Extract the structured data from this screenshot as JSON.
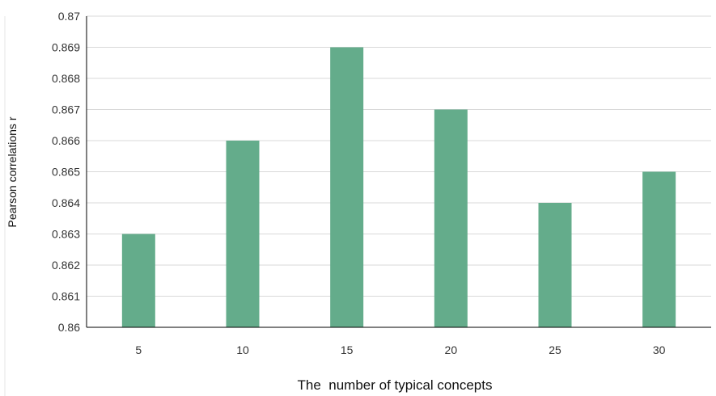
{
  "chart_data": {
    "type": "bar",
    "categories": [
      "5",
      "10",
      "15",
      "20",
      "25",
      "30"
    ],
    "values": [
      0.863,
      0.866,
      0.869,
      0.867,
      0.864,
      0.865
    ],
    "title": "",
    "xlabel": "The  number of typical concepts",
    "ylabel": "Pearson correlations r",
    "ylim": [
      0.86,
      0.87
    ],
    "yticks": [
      "0.86",
      "0.861",
      "0.862",
      "0.863",
      "0.864",
      "0.865",
      "0.866",
      "0.867",
      "0.868",
      "0.869",
      "0.87"
    ],
    "grid": true,
    "legend": "none",
    "bar_color": "#64ac8b"
  }
}
